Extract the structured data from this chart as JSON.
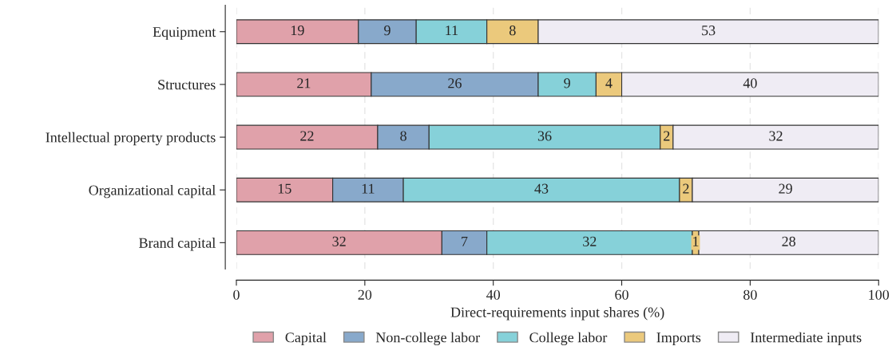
{
  "chart_data": {
    "type": "bar",
    "orientation": "horizontal",
    "stacked": true,
    "xlabel": "Direct-requirements input shares (%)",
    "categories": [
      "Equipment",
      "Structures",
      "Intellectual property products",
      "Organizational capital",
      "Brand capital"
    ],
    "series": [
      {
        "name": "Capital",
        "color": "#e0a1aa",
        "values": [
          19,
          21,
          22,
          15,
          32
        ]
      },
      {
        "name": "Non-college labor",
        "color": "#88a9cb",
        "values": [
          9,
          26,
          8,
          11,
          7
        ]
      },
      {
        "name": "College labor",
        "color": "#86d1d9",
        "values": [
          11,
          9,
          36,
          43,
          32
        ]
      },
      {
        "name": "Imports",
        "color": "#ebc97c",
        "values": [
          8,
          4,
          2,
          2,
          1
        ]
      },
      {
        "name": "Intermediate inputs",
        "color": "#efecf4",
        "values": [
          53,
          40,
          32,
          29,
          28
        ]
      }
    ],
    "xlim": [
      0,
      100
    ],
    "xticks": [
      0,
      20,
      40,
      60,
      80,
      100
    ],
    "grid": "x",
    "legend": "bottom",
    "data_labels": true
  }
}
